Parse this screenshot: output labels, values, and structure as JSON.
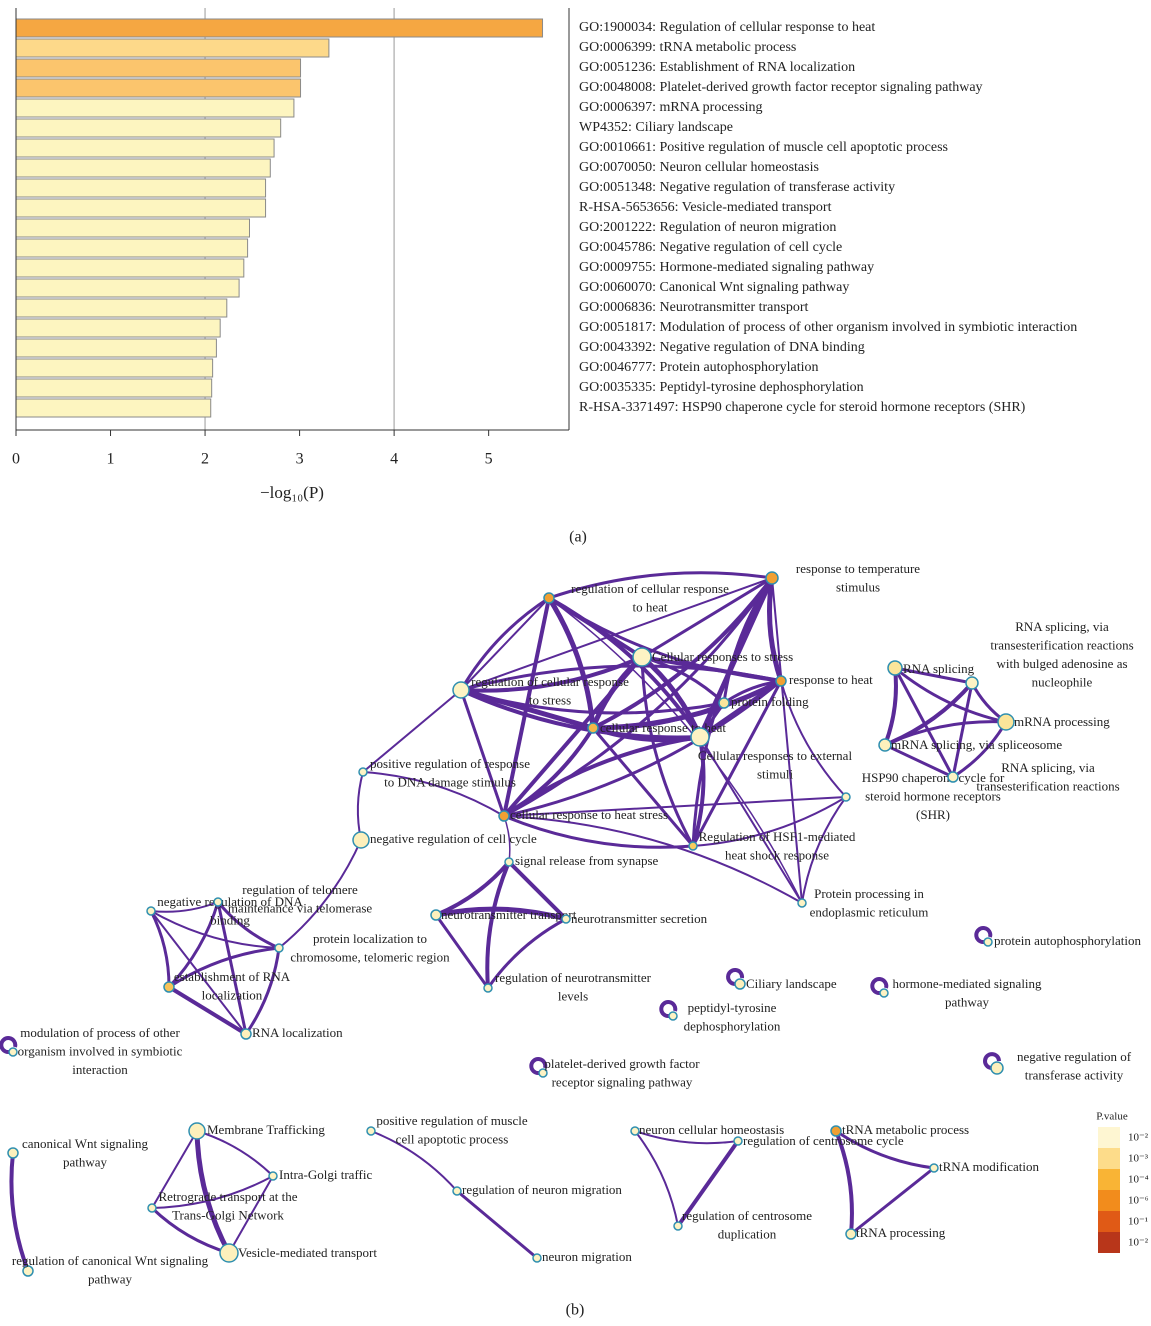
{
  "chart_data": {
    "type": "bar",
    "orientation": "horizontal",
    "categories": [
      "GO:1900034: Regulation of cellular response to heat",
      "GO:0006399: tRNA metabolic process",
      "GO:0051236: Establishment of RNA localization",
      "GO:0048008: Platelet-derived growth factor receptor signaling pathway",
      "GO:0006397: mRNA processing",
      "WP4352: Ciliary landscape",
      "GO:0010661: Positive regulation of muscle cell apoptotic process",
      "GO:0070050: Neuron cellular homeostasis",
      "GO:0051348: Negative regulation of transferase activity",
      "R-HSA-5653656: Vesicle-mediated transport",
      "GO:2001222: Regulation of neuron migration",
      "GO:0045786: Negative regulation of cell cycle",
      "GO:0009755: Hormone-mediated signaling pathway",
      "GO:0060070: Canonical Wnt signaling pathway",
      "GO:0006836: Neurotransmitter transport",
      "GO:0051817: Modulation of process of other organism involved in symbiotic interaction",
      "GO:0043392: Negative regulation of DNA binding",
      "GO:0046777: Protein autophosphorylation",
      "GO:0035335: Peptidyl-tyrosine dephosphorylation",
      "R-HSA-3371497: HSP90 chaperone cycle for steroid hormone receptors (SHR)"
    ],
    "values": [
      5.57,
      3.31,
      3.01,
      3.01,
      2.94,
      2.8,
      2.73,
      2.69,
      2.64,
      2.64,
      2.47,
      2.45,
      2.41,
      2.36,
      2.23,
      2.16,
      2.12,
      2.08,
      2.07,
      2.06
    ],
    "colors": [
      "#f5a742",
      "#fdd98a",
      "#fbc56d",
      "#fbc56d",
      "#fdf5c0",
      "#fdf5c0",
      "#fdf5c0",
      "#fdf5c0",
      "#fdf5c0",
      "#fdf5c0",
      "#fdf5c0",
      "#fdf5c0",
      "#fdf5c0",
      "#fdf5c0",
      "#fdf5c0",
      "#fdf5c0",
      "#fdf5c0",
      "#fdf5c0",
      "#fdf5c0",
      "#fdf5c0"
    ],
    "xlim": [
      0,
      5.85
    ],
    "xticks": [
      0,
      1,
      2,
      3,
      4,
      5
    ],
    "xgrid": [
      2,
      4
    ],
    "xlabel": "−log₁₀(P)"
  },
  "panel_labels": [
    "(a)",
    "(b)"
  ],
  "network": {
    "nodes": [
      {
        "label": [
          "regulation of cellular response",
          "to heat"
        ],
        "color": "#f0a033"
      },
      {
        "label": [
          "response to temperature",
          "stimulus"
        ],
        "color": "#f0a033"
      },
      {
        "label": [
          "Cellular responses to stress"
        ],
        "color": "#fdf3c4"
      },
      {
        "label": [
          "regulation of cellular response",
          "to stress"
        ],
        "color": "#fdf3c4"
      },
      {
        "label": [
          "response to heat"
        ],
        "color": "#f0a033"
      },
      {
        "label": [
          "protein folding"
        ],
        "color": "#fbe59a"
      },
      {
        "label": [
          "cellular response to heat"
        ],
        "color": "#f5b748"
      },
      {
        "label": [
          "Cellular responses to external",
          "stimuli"
        ],
        "color": "#fdf3c4"
      },
      {
        "label": [
          "positive regulation of response",
          "to DNA damage stimulus"
        ],
        "color": "#fdf3c4"
      },
      {
        "label": [
          "HSP90 chaperone cycle for",
          "steroid hormone receptors",
          "(SHR)"
        ],
        "color": "#fdf3c4"
      },
      {
        "label": [
          "cellular response to heat stress"
        ],
        "color": "#f0a033"
      },
      {
        "label": [
          "Regulation of HSF1-mediated",
          "heat shock response"
        ],
        "color": "#f7cc5e"
      },
      {
        "label": [
          "negative regulation of cell cycle"
        ],
        "color": "#fdf0bc"
      },
      {
        "label": [
          "Protein processing in",
          "endoplasmic reticulum"
        ],
        "color": "#fdf3c4"
      },
      {
        "label": [
          "RNA splicing"
        ],
        "color": "#fbe59a"
      },
      {
        "label": [
          "RNA splicing, via",
          "transesterification reactions",
          "with bulged adenosine as",
          "nucleophile"
        ],
        "color": "#fdf3c4"
      },
      {
        "label": [
          "mRNA processing"
        ],
        "color": "#fbe59a"
      },
      {
        "label": [
          "mRNA splicing, via spliceosome"
        ],
        "color": "#fdf0bc"
      },
      {
        "label": [
          "RNA splicing, via",
          "transesterification reactions"
        ],
        "color": "#fdf3c4"
      },
      {
        "label": [
          "negative regulation of DNA",
          "binding"
        ],
        "color": "#fdf3c4"
      },
      {
        "label": [
          "regulation of telomere",
          "maintenance via telomerase"
        ],
        "color": "#fdf3c4"
      },
      {
        "label": [
          "protein localization to",
          "chromosome, telomeric region"
        ],
        "color": "#fdf3c4"
      },
      {
        "label": [
          "establishment of RNA",
          "localization"
        ],
        "color": "#f7c35a"
      },
      {
        "label": [
          "RNA localization"
        ],
        "color": "#fdf0bc"
      },
      {
        "label": [
          "signal release from synapse"
        ],
        "color": "#fdf3c4"
      },
      {
        "label": [
          "neurotransmitter transport"
        ],
        "color": "#fdf0bc"
      },
      {
        "label": [
          "neurotransmitter secretion"
        ],
        "color": "#fdf3c4"
      },
      {
        "label": [
          "regulation of neurotransmitter",
          "levels"
        ],
        "color": "#fdf3c4"
      },
      {
        "label": [
          "modulation of process of other",
          "organism involved in symbiotic",
          "interaction"
        ],
        "color": "#fdf3c4"
      },
      {
        "label": [
          "Ciliary landscape"
        ],
        "color": "#fdf0bc"
      },
      {
        "label": [
          "peptidyl-tyrosine",
          "dephosphorylation"
        ],
        "color": "#fdf3c4"
      },
      {
        "label": [
          "platelet-derived growth factor",
          "receptor signaling pathway"
        ],
        "color": "#fdf3c4"
      },
      {
        "label": [
          "protein autophosphorylation"
        ],
        "color": "#fdf3c4"
      },
      {
        "label": [
          "hormone-mediated signaling",
          "pathway"
        ],
        "color": "#fdf3c4"
      },
      {
        "label": [
          "negative regulation of",
          "transferase activity"
        ],
        "color": "#fdf0bc"
      },
      {
        "label": [
          "canonical Wnt signaling",
          "pathway"
        ],
        "color": "#fdf0bc"
      },
      {
        "label": [
          "regulation of canonical Wnt signaling",
          "pathway"
        ],
        "color": "#fdf3c4"
      },
      {
        "label": [
          "Membrane Trafficking"
        ],
        "color": "#fdf0bc"
      },
      {
        "label": [
          "Intra-Golgi traffic"
        ],
        "color": "#fdf3c4"
      },
      {
        "label": [
          "Retrograde transport at the",
          "Trans-Golgi Network"
        ],
        "color": "#fdf3c4"
      },
      {
        "label": [
          "Vesicle-mediated transport"
        ],
        "color": "#fdf0bc"
      },
      {
        "label": [
          "positive regulation of muscle",
          "cell apoptotic process"
        ],
        "color": "#fdf3c4"
      },
      {
        "label": [
          "regulation of neuron migration"
        ],
        "color": "#fdf3c4"
      },
      {
        "label": [
          "neuron migration"
        ],
        "color": "#fdf3c4"
      },
      {
        "label": [
          "neuron cellular homeostasis"
        ],
        "color": "#fdf3c4"
      },
      {
        "label": [
          "regulation of centrosome cycle"
        ],
        "color": "#fdf3c4"
      },
      {
        "label": [
          "regulation of centrosome",
          "duplication"
        ],
        "color": "#fdf3c4"
      },
      {
        "label": [
          "tRNA metabolic process"
        ],
        "color": "#f0a033"
      },
      {
        "label": [
          "tRNA modification"
        ],
        "color": "#fdf3c4"
      },
      {
        "label": [
          "tRNA processing"
        ],
        "color": "#fdf0bc"
      }
    ],
    "legend": {
      "title": "P.value",
      "labels": [
        "10⁻²",
        "10⁻³",
        "10⁻⁴",
        "10⁻⁶",
        "10⁻¹",
        "10⁻²"
      ],
      "colors": [
        "#fef6d2",
        "#fddc8a",
        "#f9b435",
        "#f28c1c",
        "#e05a16",
        "#b8361a"
      ]
    }
  }
}
